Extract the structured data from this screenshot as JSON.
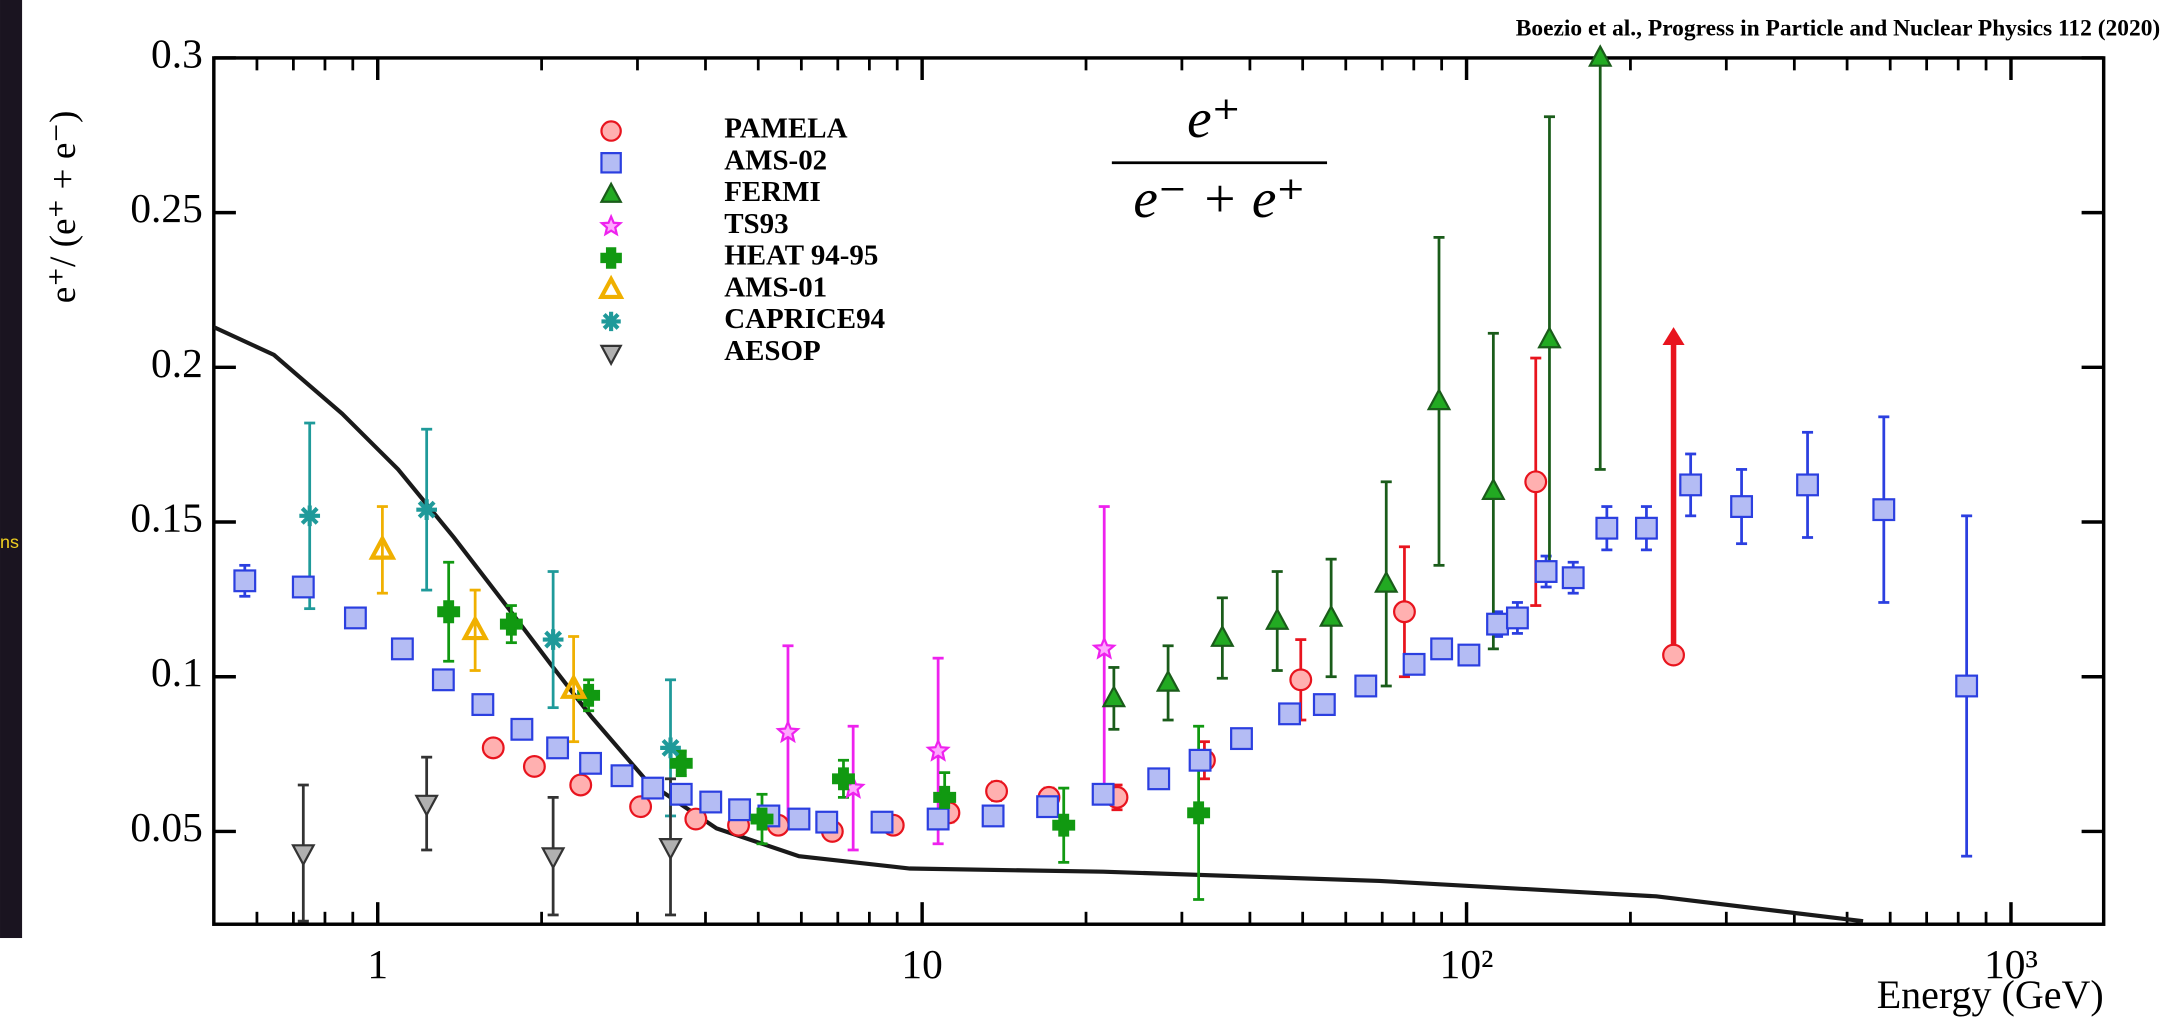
{
  "chart_data": {
    "type": "scatter",
    "source_note": "Boezio et al., Progress in Particle and Nuclear Physics 112 (2020)",
    "side_text": "ns",
    "formula_numerator": "e⁺",
    "formula_denominator": "e⁻ + e⁺",
    "x_label": "Energy (GeV)",
    "y_label": "e⁺/ (e⁺ + e⁻)",
    "x_scale": "log",
    "xlim": [
      0.5,
      1480
    ],
    "ylim": [
      0.02,
      0.3
    ],
    "xticks": [
      1,
      10,
      {
        "value": 100,
        "label": "10²"
      },
      {
        "value": 1000,
        "label": "10³"
      }
    ],
    "xminorticks": [
      0.6,
      0.7,
      0.8,
      0.9,
      2,
      3,
      4,
      5,
      6,
      7,
      8,
      9,
      20,
      30,
      40,
      50,
      60,
      70,
      80,
      90,
      200,
      300,
      400,
      500,
      600,
      700,
      800,
      900
    ],
    "yticks": [
      0.05,
      0.1,
      0.15,
      0.2,
      0.25,
      0.3
    ],
    "legend": "upper left",
    "series": [
      {
        "name": "PAMELA",
        "marker": "circle",
        "color": "#e8141e",
        "fill": "#ffb0b0",
        "x": [
          1.63,
          1.94,
          2.36,
          3.04,
          3.84,
          4.6,
          5.44,
          6.84,
          8.85,
          11.2,
          13.7,
          17.1,
          22.8,
          33,
          49.6,
          76.9,
          134,
          240
        ],
        "values": [
          0.077,
          0.071,
          0.065,
          0.058,
          0.054,
          0.052,
          0.052,
          0.05,
          0.052,
          0.056,
          0.063,
          0.061,
          0.061,
          0.073,
          0.099,
          0.121,
          0.163,
          0.107
        ],
        "errors": [
          0.002,
          0.002,
          0.002,
          0.002,
          0.002,
          0.002,
          0.002,
          0.002,
          0.002,
          0.003,
          0.003,
          0.003,
          0.004,
          0.006,
          0.013,
          0.021,
          0.04,
          null
        ]
      },
      {
        "name": "AMS-02",
        "marker": "square",
        "color": "#2b3fe0",
        "fill": "#b4bcf4",
        "x": [
          0.57,
          0.73,
          0.91,
          1.11,
          1.32,
          1.56,
          1.84,
          2.14,
          2.46,
          2.81,
          3.2,
          3.61,
          4.09,
          4.62,
          5.23,
          5.94,
          6.68,
          8.44,
          10.7,
          13.5,
          17,
          21.5,
          27.2,
          32.4,
          38.6,
          47.3,
          54.8,
          65.3,
          80.1,
          90,
          101,
          114,
          124,
          140,
          157,
          181,
          214,
          258,
          320,
          423,
          584,
          829
        ],
        "values": [
          0.131,
          0.129,
          0.119,
          0.109,
          0.099,
          0.091,
          0.083,
          0.077,
          0.072,
          0.068,
          0.064,
          0.062,
          0.0595,
          0.057,
          0.055,
          0.054,
          0.053,
          0.053,
          0.054,
          0.055,
          0.058,
          0.062,
          0.067,
          0.073,
          0.08,
          0.088,
          0.091,
          0.097,
          0.104,
          0.109,
          0.107,
          0.117,
          0.119,
          0.134,
          0.132,
          0.148,
          0.148,
          0.162,
          0.155,
          0.162,
          0.154,
          0.097
        ],
        "errors": [
          0.005,
          0.003,
          0.002,
          0.002,
          0.002,
          0.002,
          0.002,
          0.002,
          0.002,
          0.002,
          0.002,
          0.002,
          0.002,
          0.002,
          0.002,
          0.002,
          0.002,
          0.002,
          0.002,
          0.002,
          0.002,
          0.002,
          0.002,
          0.002,
          0.002,
          0.002,
          0.002,
          0.002,
          0.002,
          0.003,
          0.003,
          0.004,
          0.005,
          0.005,
          0.005,
          0.007,
          0.007,
          0.01,
          0.012,
          0.017,
          0.03,
          0.055
        ]
      },
      {
        "name": "FERMI",
        "marker": "triangle-up",
        "color": "#1a5c1a",
        "fill": "#22aa22",
        "x": [
          22.5,
          28.3,
          35.6,
          44.9,
          56.4,
          71.2,
          89,
          112,
          142,
          176
        ],
        "values": [
          0.093,
          0.098,
          0.1125,
          0.118,
          0.119,
          0.13,
          0.189,
          0.16,
          0.209,
          0.3
        ],
        "errors": [
          0.01,
          0.012,
          0.013,
          0.016,
          0.019,
          0.033,
          0.053,
          0.051,
          0.072,
          0.133
        ]
      },
      {
        "name": "TS93",
        "marker": "star",
        "color": "#ee22ee",
        "fill": "#ffa8ff",
        "x": [
          5.67,
          7.47,
          10.7,
          21.6
        ],
        "values": [
          0.082,
          0.064,
          0.076,
          0.109
        ],
        "errors": [
          0.028,
          0.02,
          0.03,
          0.046
        ]
      },
      {
        "name": "HEAT 94-95",
        "marker": "cross",
        "color": "#119911",
        "fill": "#119911",
        "x": [
          1.35,
          1.76,
          2.44,
          3.61,
          5.08,
          7.17,
          11,
          18.2,
          32.2
        ],
        "values": [
          0.121,
          0.117,
          0.094,
          0.072,
          0.054,
          0.067,
          0.061,
          0.052,
          0.056
        ],
        "errors": [
          0.016,
          0.006,
          0.005,
          0.004,
          0.008,
          0.006,
          0.008,
          0.012,
          0.028
        ]
      },
      {
        "name": "AMS-01",
        "marker": "triangle-up",
        "color": "#f0b000",
        "fill": "none",
        "x": [
          1.02,
          1.51,
          2.29
        ],
        "values": [
          0.141,
          0.115,
          0.096
        ],
        "errors": [
          0.014,
          0.013,
          0.017
        ]
      },
      {
        "name": "CAPRICE94",
        "marker": "asterisk",
        "color": "#1f9a9a",
        "fill": "#1f9a9a",
        "x": [
          0.75,
          1.23,
          2.1,
          3.45
        ],
        "values": [
          0.152,
          0.154,
          0.112,
          0.077
        ],
        "errors": [
          0.03,
          0.026,
          0.022,
          0.022
        ]
      },
      {
        "name": "AESOP",
        "marker": "triangle-down",
        "color": "#333333",
        "fill": "#b0b0b0",
        "x": [
          0.73,
          1.23,
          2.1,
          3.45
        ],
        "values": [
          0.043,
          0.059,
          0.042,
          0.045
        ],
        "errors": [
          0.022,
          0.015,
          0.019,
          0.022
        ]
      }
    ],
    "curve": {
      "color": "#1a1a1a",
      "x": [
        0.5,
        0.645,
        0.86,
        1.09,
        1.38,
        1.74,
        2.08,
        2.47,
        3.13,
        4.19,
        5.94,
        9.49,
        21.5,
        69.2,
        223,
        535
      ],
      "values": [
        0.213,
        0.204,
        0.185,
        0.167,
        0.145,
        0.122,
        0.104,
        0.087,
        0.066,
        0.051,
        0.042,
        0.038,
        0.037,
        0.034,
        0.029,
        0.021
      ]
    },
    "arrows": [
      {
        "x": 240,
        "from": 0.107,
        "to": 0.213,
        "color": "#e8141e"
      }
    ]
  }
}
